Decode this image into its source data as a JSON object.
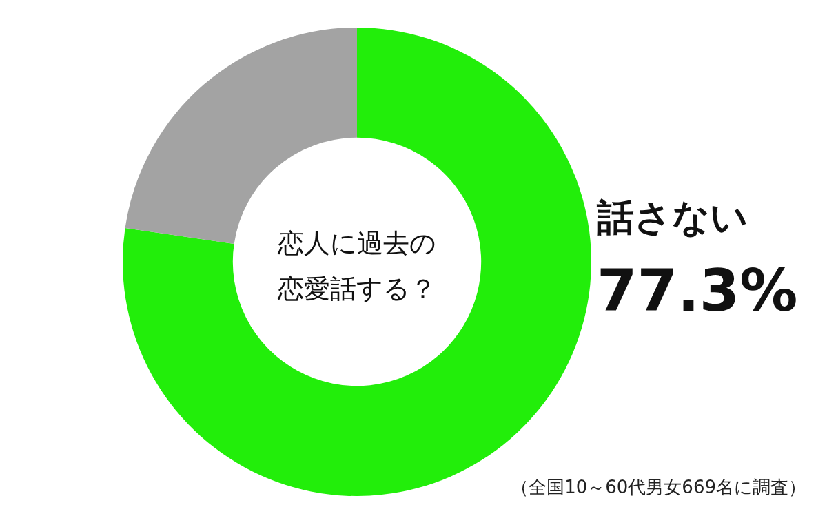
{
  "chart_data": {
    "type": "donut",
    "title": "恋人に過去の恋愛話する？",
    "categories": [
      "話さない",
      null
    ],
    "values": [
      77.3,
      22.7
    ],
    "colors": [
      "#22ee0a",
      "#a3a3a3"
    ],
    "value_labels": [
      "77.3%",
      null
    ],
    "annotations": [
      "（全国10～60代男女669名に調査）"
    ]
  }
}
